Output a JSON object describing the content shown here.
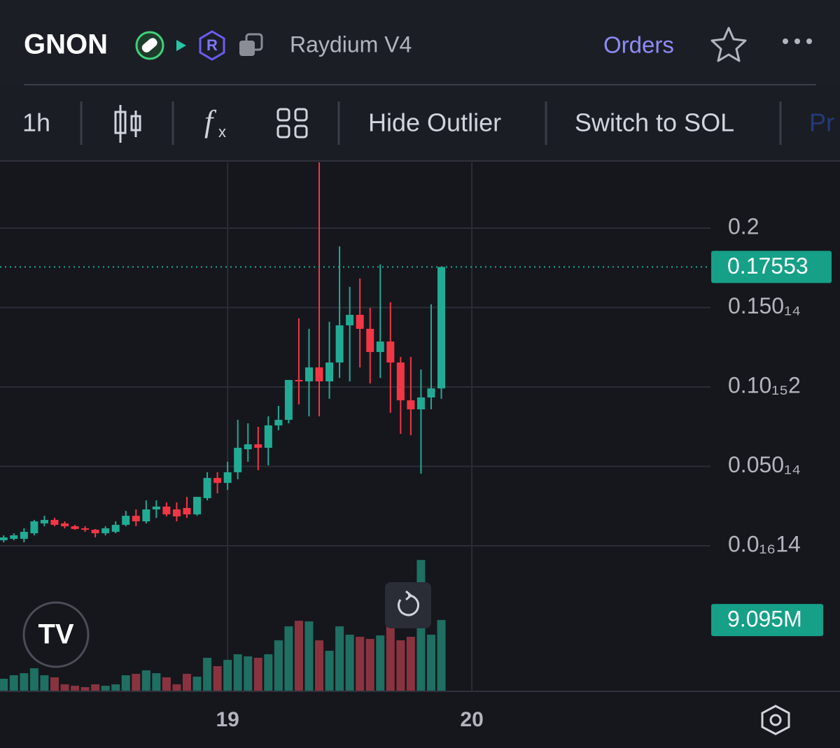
{
  "header": {
    "token": "GNON",
    "dex": "Raydium V4",
    "orders": "Orders"
  },
  "toolbar": {
    "interval": "1h",
    "hide_outlier": "Hide Outlier",
    "switch": "Switch to SOL",
    "cut_off": "Pr"
  },
  "chart_data": {
    "type": "candlestick",
    "categories": [
      null,
      null,
      null,
      null,
      null,
      null,
      null,
      null,
      null,
      null,
      null,
      null,
      null,
      null,
      null,
      null,
      null,
      null,
      null,
      null,
      null,
      null,
      "19",
      null,
      null,
      null,
      null,
      null,
      null,
      null,
      null,
      null,
      null,
      null,
      null,
      null,
      null,
      null,
      null,
      null,
      null,
      null,
      null,
      null,
      null,
      null,
      "20"
    ],
    "open": [
      0.0035,
      0.0044,
      0.0044,
      0.0079,
      0.0141,
      0.0163,
      0.0141,
      0.0123,
      0.011,
      0.0101,
      0.0079,
      0.0088,
      0.0132,
      0.0189,
      0.0154,
      0.0229,
      0.0247,
      0.0229,
      0.0238,
      0.0198,
      0.03,
      0.0427,
      0.0396,
      0.0463,
      0.0608,
      0.0639,
      0.0617,
      0.0758,
      0.0793,
      0.1044,
      0.1035,
      0.1123,
      0.1035,
      0.1154,
      0.1388,
      0.1454,
      0.1366,
      0.122,
      0.1286,
      0.1154,
      0.0916,
      0.0859,
      0.0934,
      0.0991,
      null,
      null,
      null
    ],
    "high": [
      0.0066,
      0.0079,
      0.011,
      0.0163,
      0.0189,
      0.0176,
      0.0154,
      0.0132,
      0.0123,
      0.0106,
      0.0123,
      0.0154,
      0.022,
      0.0229,
      0.0286,
      0.0286,
      0.0273,
      0.0273,
      0.0308,
      0.0308,
      0.0463,
      0.0463,
      0.0529,
      0.0793,
      0.0771,
      0.0749,
      0.0815,
      0.0881,
      0.1044,
      0.1432,
      0.1366,
      0.2414,
      0.141,
      0.1885,
      0.163,
      0.1683,
      0.1498,
      0.1771,
      0.1533,
      0.1189,
      0.1189,
      0.111,
      0.152,
      0.17553,
      null,
      null,
      null
    ],
    "low": [
      0.0022,
      0.0035,
      0.0022,
      0.0066,
      0.0123,
      0.0123,
      0.011,
      0.0101,
      0.0088,
      0.0053,
      0.0066,
      0.0079,
      0.0123,
      0.0123,
      0.0141,
      0.0176,
      0.0185,
      0.0154,
      0.0176,
      0.0189,
      0.0286,
      0.033,
      0.0352,
      0.0419,
      0.0529,
      0.0476,
      0.0507,
      0.0727,
      0.0771,
      0.089,
      0.0815,
      0.0815,
      0.0925,
      0.1057,
      0.1035,
      0.1123,
      0.1022,
      0.1057,
      0.0837,
      0.0705,
      0.0696,
      0.0454,
      0.0859,
      0.0925,
      null,
      null,
      null
    ],
    "close": [
      0.0053,
      0.0066,
      0.0088,
      0.0154,
      0.0163,
      0.0132,
      0.0123,
      0.0106,
      0.0101,
      0.0079,
      0.011,
      0.0132,
      0.0189,
      0.0154,
      0.0229,
      0.0247,
      0.0198,
      0.0185,
      0.0198,
      0.0308,
      0.0427,
      0.0396,
      0.0463,
      0.0617,
      0.0639,
      0.0617,
      0.0758,
      0.0793,
      0.1044,
      0.1035,
      0.1123,
      0.1035,
      0.1154,
      0.1388,
      0.1454,
      0.1366,
      0.122,
      0.1286,
      0.1154,
      0.0916,
      0.0859,
      0.0934,
      0.0991,
      0.17553,
      null,
      null,
      null
    ],
    "volume": [
      1605000,
      2051000,
      2318000,
      2943000,
      2051000,
      1783000,
      892000,
      713000,
      535000,
      892000,
      713000,
      892000,
      2051000,
      2229000,
      2675000,
      2318000,
      1783000,
      892000,
      2229000,
      1873000,
      4280000,
      3210000,
      4013000,
      4726000,
      4459000,
      4280000,
      4726000,
      6509000,
      8293000,
      9006000,
      8917000,
      6509000,
      5172000,
      8293000,
      7223000,
      6955000,
      6688000,
      7134000,
      8293000,
      6509000,
      6955000,
      16764000,
      7223000,
      9095000,
      null,
      null,
      null
    ],
    "last_volume_label": "9.095M",
    "up_color": "#22ab94",
    "down_color": "#f23645",
    "up_volume_color": "#1f6f62",
    "down_volume_color": "#8a3340",
    "ylim": [
      -0.0916,
      0.2414
    ],
    "yticks": [
      0.2,
      {
        "value": 0.15,
        "label": "0.150₁₄"
      },
      {
        "value": 0.1,
        "label": "0.10₁₅2"
      },
      {
        "value": 0.05,
        "label": "0.050₁₄"
      },
      {
        "value": 0,
        "label": "0.0₁₆14"
      }
    ],
    "y2lim": [
      0,
      25000000
    ],
    "grid": true
  }
}
